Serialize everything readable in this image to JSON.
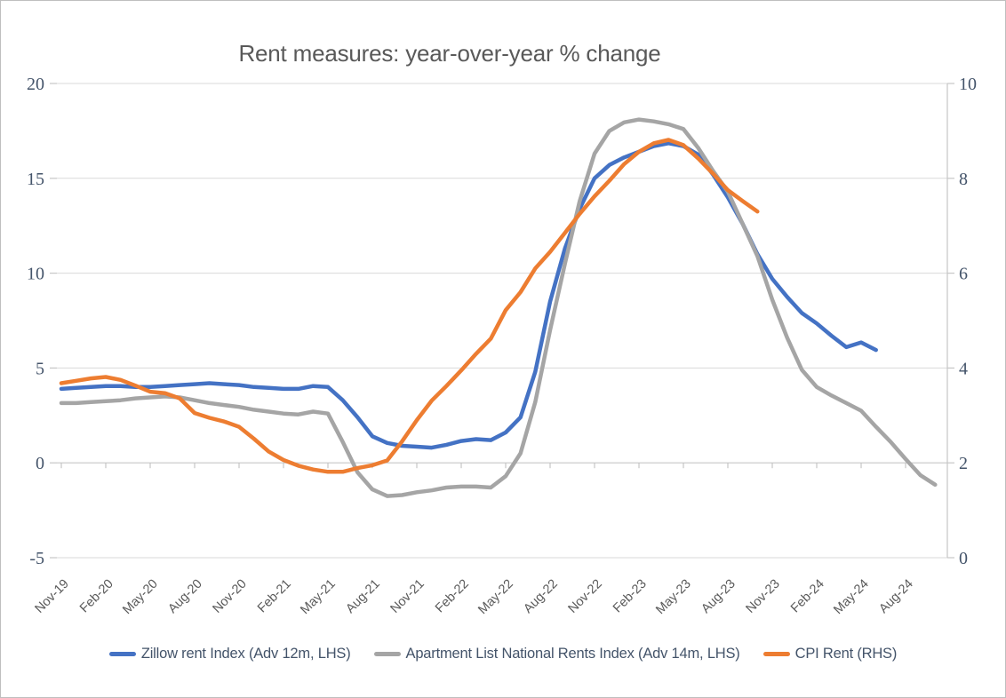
{
  "chart_data": {
    "type": "line",
    "title": "Rent measures: year-over-year % change",
    "grid": true,
    "legend_position": "bottom",
    "left_axis": {
      "ticks": [
        20,
        15,
        10,
        5,
        0,
        -5
      ],
      "range": [
        -5,
        20
      ]
    },
    "right_axis": {
      "ticks": [
        10,
        8,
        6,
        4,
        2,
        0
      ],
      "range": [
        0,
        10
      ]
    },
    "x_tick_labels": [
      "Nov-19",
      "Feb-20",
      "May-20",
      "Aug-20",
      "Nov-20",
      "Feb-21",
      "May-21",
      "Aug-21",
      "Nov-21",
      "Feb-22",
      "May-22",
      "Aug-22",
      "Nov-22",
      "Feb-23",
      "May-23",
      "Aug-23",
      "Nov-23",
      "Feb-24",
      "May-24",
      "Aug-24"
    ],
    "x_months": [
      "Nov-19",
      "Dec-19",
      "Jan-20",
      "Feb-20",
      "Mar-20",
      "Apr-20",
      "May-20",
      "Jun-20",
      "Jul-20",
      "Aug-20",
      "Sep-20",
      "Oct-20",
      "Nov-20",
      "Dec-20",
      "Jan-21",
      "Feb-21",
      "Mar-21",
      "Apr-21",
      "May-21",
      "Jun-21",
      "Jul-21",
      "Aug-21",
      "Sep-21",
      "Oct-21",
      "Nov-21",
      "Dec-21",
      "Jan-22",
      "Feb-22",
      "Mar-22",
      "Apr-22",
      "May-22",
      "Jun-22",
      "Jul-22",
      "Aug-22",
      "Sep-22",
      "Oct-22",
      "Nov-22",
      "Dec-22",
      "Jan-23",
      "Feb-23",
      "Mar-23",
      "Apr-23",
      "May-23",
      "Jun-23",
      "Jul-23",
      "Aug-23",
      "Sep-23",
      "Oct-23",
      "Nov-23",
      "Dec-23",
      "Jan-24",
      "Feb-24",
      "Mar-24",
      "Apr-24",
      "May-24",
      "Jun-24",
      "Jul-24",
      "Aug-24",
      "Sep-24",
      "Oct-24"
    ],
    "series": [
      {
        "id": "zillow",
        "name": "Zillow rent Index (Adv 12m, LHS)",
        "axis": "left",
        "color": "#4472C4",
        "start_month": "Nov-19",
        "end_month": "Jun-24",
        "values": [
          3.9,
          3.95,
          4.0,
          4.05,
          4.05,
          4.0,
          4.0,
          4.05,
          4.1,
          4.15,
          4.2,
          4.15,
          4.1,
          4.0,
          3.95,
          3.9,
          3.9,
          4.05,
          4.0,
          3.3,
          2.4,
          1.4,
          1.05,
          0.9,
          0.85,
          0.8,
          0.95,
          1.15,
          1.25,
          1.2,
          1.6,
          2.4,
          4.8,
          8.5,
          11.3,
          13.4,
          15.0,
          15.7,
          16.1,
          16.4,
          16.7,
          16.85,
          16.7,
          16.25,
          15.2,
          14.0,
          12.6,
          11.0,
          9.7,
          8.75,
          7.9,
          7.35,
          6.7,
          6.1,
          6.35,
          5.95
        ]
      },
      {
        "id": "apartment-list",
        "name": "Apartment List National Rents Index (Adv 14m, LHS)",
        "axis": "left",
        "color": "#A5A5A5",
        "start_month": "Nov-19",
        "end_month": "Oct-24",
        "values": [
          3.15,
          3.15,
          3.2,
          3.25,
          3.3,
          3.4,
          3.45,
          3.5,
          3.45,
          3.3,
          3.15,
          3.05,
          2.95,
          2.8,
          2.7,
          2.6,
          2.55,
          2.7,
          2.6,
          1.1,
          -0.5,
          -1.4,
          -1.75,
          -1.7,
          -1.55,
          -1.45,
          -1.3,
          -1.25,
          -1.25,
          -1.3,
          -0.7,
          0.5,
          3.2,
          7.0,
          10.5,
          13.8,
          16.3,
          17.5,
          17.95,
          18.1,
          18.0,
          17.85,
          17.6,
          16.6,
          15.4,
          14.3,
          12.6,
          10.9,
          8.6,
          6.6,
          4.9,
          4.0,
          3.55,
          3.15,
          2.75,
          1.9,
          1.1,
          0.2,
          -0.65,
          -1.15
        ]
      },
      {
        "id": "cpi-rent",
        "name": "CPI Rent (RHS)",
        "axis": "right",
        "color": "#ED7D31",
        "start_month": "Nov-19",
        "end_month": "Oct-23",
        "values": [
          3.68,
          3.73,
          3.78,
          3.81,
          3.75,
          3.63,
          3.5,
          3.47,
          3.36,
          3.05,
          2.95,
          2.87,
          2.76,
          2.51,
          2.24,
          2.06,
          1.94,
          1.86,
          1.81,
          1.81,
          1.89,
          1.95,
          2.05,
          2.45,
          2.9,
          3.31,
          3.62,
          3.95,
          4.3,
          4.62,
          5.22,
          5.6,
          6.1,
          6.45,
          6.85,
          7.25,
          7.62,
          7.95,
          8.3,
          8.56,
          8.74,
          8.81,
          8.7,
          8.42,
          8.1,
          7.75,
          7.52,
          7.3
        ]
      }
    ],
    "style_colors": {
      "gridline": "#D9D9D9",
      "axis_line": "#C6C6C6",
      "y_label": "#44546A",
      "x_label": "#595959",
      "title": "#595959",
      "legend_text": "#44546A"
    }
  }
}
